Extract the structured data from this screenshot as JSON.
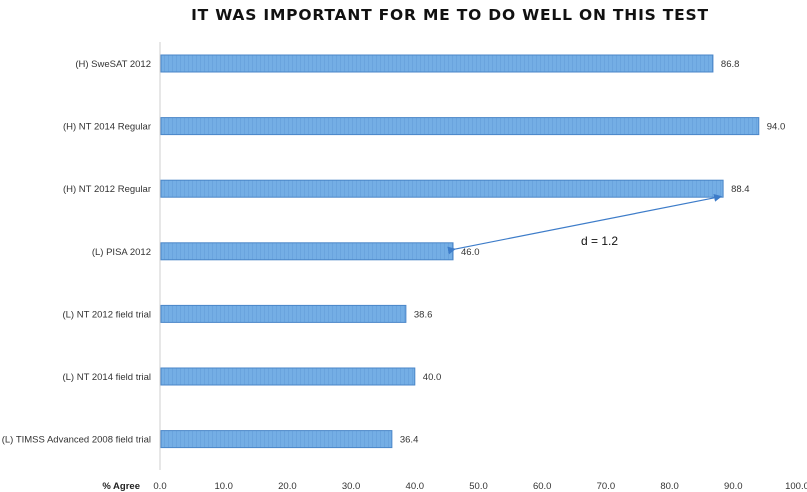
{
  "chart_data": {
    "type": "bar",
    "orientation": "horizontal",
    "title": "IT WAS IMPORTANT FOR ME TO DO WELL ON THIS TEST",
    "xlabel": "% Agree",
    "ylabel": "",
    "xlim": [
      0,
      100
    ],
    "x_ticks": [
      "0.0",
      "10.0",
      "20.0",
      "30.0",
      "40.0",
      "50.0",
      "60.0",
      "70.0",
      "80.0",
      "90.0",
      "100.0"
    ],
    "categories": [
      "(H) SweSAT 2012",
      "(H) NT 2014 Regular",
      "(H) NT 2012 Regular",
      "(L) PISA 2012",
      "(L) NT 2012 field trial",
      "(L) NT 2014 field trial",
      "(L) TIMSS Advanced 2008 field trial"
    ],
    "values": [
      86.8,
      94.0,
      88.4,
      46.0,
      38.6,
      40.0,
      36.4
    ],
    "value_labels": [
      "86.8",
      "94.0",
      "88.4",
      "46.0",
      "38.6",
      "40.0",
      "36.4"
    ],
    "grid": false,
    "legend": "none",
    "bar_color": "#6fa8e0",
    "bar_edge_color": "#4a86c8",
    "annotation": {
      "text": "d = 1.2",
      "from_category": "(L) PISA 2012",
      "to_category": "(H) NT 2012 Regular",
      "arrow_color": "#3d7cc9"
    }
  }
}
